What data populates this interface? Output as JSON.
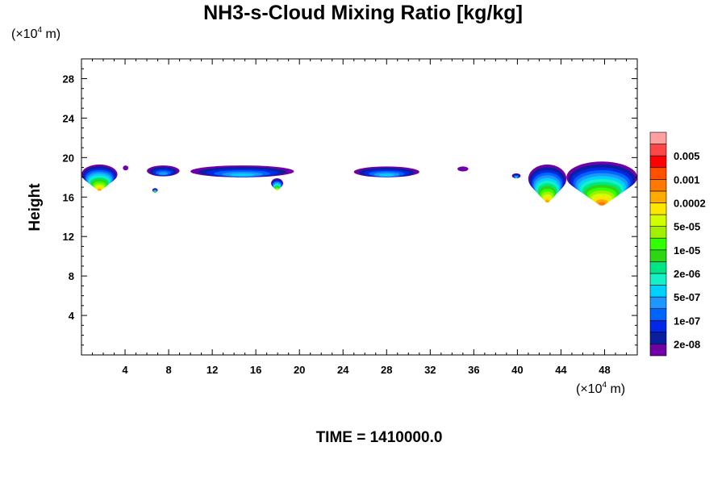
{
  "chart_data": {
    "type": "contour",
    "title": "NH3-s-Cloud Mixing Ratio [kg/kg]",
    "ylabel": "Height",
    "xunit": {
      "base": "(×10",
      "exp": "4",
      "suffix": " m)"
    },
    "yunit": {
      "base": "(×10",
      "exp": "4",
      "suffix": " m)"
    },
    "xlim": [
      0,
      51
    ],
    "ylim": [
      0,
      30
    ],
    "xticks": [
      4,
      8,
      12,
      16,
      20,
      24,
      28,
      32,
      36,
      40,
      44,
      48
    ],
    "yticks": [
      4,
      8,
      12,
      16,
      20,
      24,
      28
    ],
    "time_label": "TIME = 1410000.0",
    "legend": {
      "colors": [
        "#7000a8",
        "#0a1ea0",
        "#0028e6",
        "#0064ff",
        "#1e96ff",
        "#00d2ff",
        "#14f0c8",
        "#00e682",
        "#2cd614",
        "#32ff00",
        "#a0f000",
        "#d2ff00",
        "#ffe600",
        "#ffaa00",
        "#ff7800",
        "#ff5000",
        "#ff0000",
        "#ff4646",
        "#ffa0a0"
      ],
      "labels": [
        "2e-08",
        "1e-07",
        "5e-07",
        "2e-06",
        "1e-05",
        "5e-05",
        "0.0002",
        "0.001",
        "0.005"
      ]
    },
    "cloud_regions": [
      {
        "x": [
          0.0,
          3.3
        ],
        "y": [
          17.3,
          19.3
        ],
        "peak_level": 13
      },
      {
        "x": [
          3.8,
          4.3
        ],
        "y": [
          18.7,
          19.2
        ],
        "peak_level": 0
      },
      {
        "x": [
          6.0,
          9.0
        ],
        "y": [
          18.1,
          19.2
        ],
        "peak_level": 4
      },
      {
        "x": [
          6.5,
          7.0
        ],
        "y": [
          16.5,
          16.9
        ],
        "peak_level": 8
      },
      {
        "x": [
          10.0,
          19.5
        ],
        "y": [
          18.0,
          19.2
        ],
        "peak_level": 5
      },
      {
        "x": [
          17.4,
          18.5
        ],
        "y": [
          16.9,
          17.9
        ],
        "peak_level": 11
      },
      {
        "x": [
          25.0,
          31.0
        ],
        "y": [
          18.0,
          19.1
        ],
        "peak_level": 5
      },
      {
        "x": [
          34.5,
          35.5
        ],
        "y": [
          18.6,
          19.1
        ],
        "peak_level": 0
      },
      {
        "x": [
          39.5,
          40.3
        ],
        "y": [
          17.9,
          18.4
        ],
        "peak_level": 5
      },
      {
        "x": [
          41.0,
          44.5
        ],
        "y": [
          16.4,
          19.3
        ],
        "peak_level": 13
      },
      {
        "x": [
          44.5,
          51.0
        ],
        "y": [
          16.4,
          19.6
        ],
        "peak_level": 14
      }
    ]
  }
}
